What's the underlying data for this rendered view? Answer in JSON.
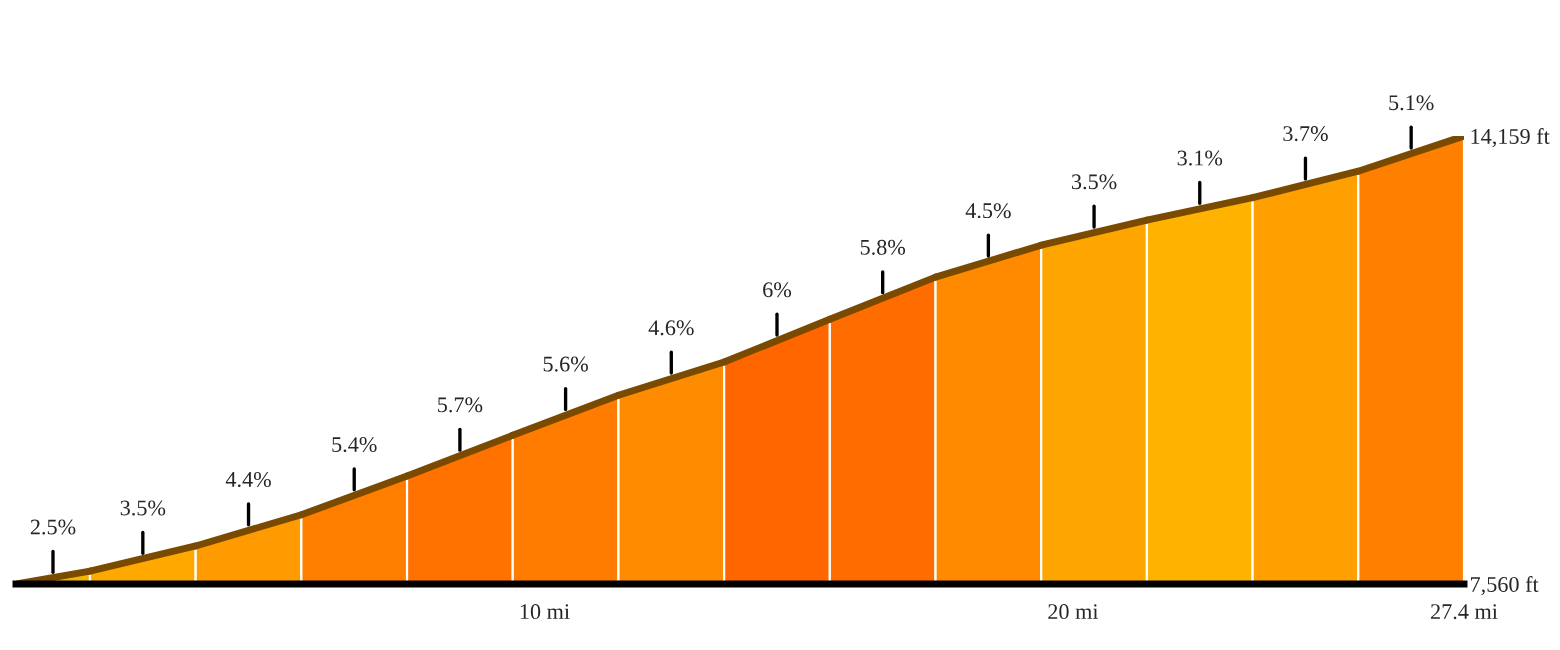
{
  "chart_data": {
    "type": "area",
    "series": [
      {
        "x": [
          0,
          1.4
        ],
        "values": [
          7560,
          7750
        ],
        "color": "#f2b600"
      },
      {
        "x": [
          1.4,
          3.4
        ],
        "values": [
          7750,
          8120
        ],
        "color": "#ffa800"
      },
      {
        "x": [
          3.4,
          5.4
        ],
        "values": [
          8120,
          8580
        ],
        "color": "#ff9a00"
      },
      {
        "x": [
          5.4,
          7.4
        ],
        "values": [
          8580,
          9150
        ],
        "color": "#ff7e00"
      },
      {
        "x": [
          7.4,
          9.4
        ],
        "values": [
          9150,
          9750
        ],
        "color": "#ff7200"
      },
      {
        "x": [
          9.4,
          11.4
        ],
        "values": [
          9750,
          10340
        ],
        "color": "#ff7c00"
      },
      {
        "x": [
          11.4,
          13.4
        ],
        "values": [
          10340,
          10830
        ],
        "color": "#ff8c00"
      },
      {
        "x": [
          13.4,
          15.4
        ],
        "values": [
          10830,
          11460
        ],
        "color": "#ff6600"
      },
      {
        "x": [
          15.4,
          17.4
        ],
        "values": [
          11460,
          12080
        ],
        "color": "#ff6c00"
      },
      {
        "x": [
          17.4,
          19.4
        ],
        "values": [
          12080,
          12550
        ],
        "color": "#ff8a00"
      },
      {
        "x": [
          19.4,
          21.4
        ],
        "values": [
          12550,
          12920
        ],
        "color": "#ffa500"
      },
      {
        "x": [
          21.4,
          23.4
        ],
        "values": [
          12920,
          13250
        ],
        "color": "#ffb300"
      },
      {
        "x": [
          23.4,
          25.4
        ],
        "values": [
          13250,
          13640
        ],
        "color": "#ff9f00"
      },
      {
        "x": [
          25.4,
          27.4
        ],
        "values": [
          13640,
          14159
        ],
        "color": "#ff7f00"
      }
    ],
    "annotations": [
      {
        "text": "2.5%",
        "x": 0.7,
        "y": 7650
      },
      {
        "text": "3.5%",
        "x": 2.4,
        "y": 7930
      },
      {
        "text": "4.4%",
        "x": 4.4,
        "y": 8350
      },
      {
        "text": "5.4%",
        "x": 6.4,
        "y": 8865
      },
      {
        "text": "5.7%",
        "x": 8.4,
        "y": 9450
      },
      {
        "text": "5.6%",
        "x": 10.4,
        "y": 10050
      },
      {
        "text": "4.6%",
        "x": 12.4,
        "y": 10585
      },
      {
        "text": "6%",
        "x": 14.4,
        "y": 11145
      },
      {
        "text": "5.8%",
        "x": 16.4,
        "y": 11770
      },
      {
        "text": "4.5%",
        "x": 18.4,
        "y": 12310
      },
      {
        "text": "3.5%",
        "x": 20.4,
        "y": 12735
      },
      {
        "text": "3.1%",
        "x": 22.4,
        "y": 13085
      },
      {
        "text": "3.7%",
        "x": 24.4,
        "y": 13445
      },
      {
        "text": "5.1%",
        "x": 26.4,
        "y": 13900
      }
    ],
    "xlim": [
      0,
      27.4
    ],
    "ylim": [
      7560,
      14159
    ],
    "xticks": [
      {
        "value": 10,
        "label": "10 mi"
      },
      {
        "value": 20,
        "label": "20 mi"
      },
      {
        "value": 27.4,
        "label": "27.4 mi"
      }
    ],
    "yticks": [
      {
        "value": 7560,
        "label": "7,560 ft"
      },
      {
        "value": 14159,
        "label": "14,159 ft"
      }
    ],
    "grid": false
  }
}
